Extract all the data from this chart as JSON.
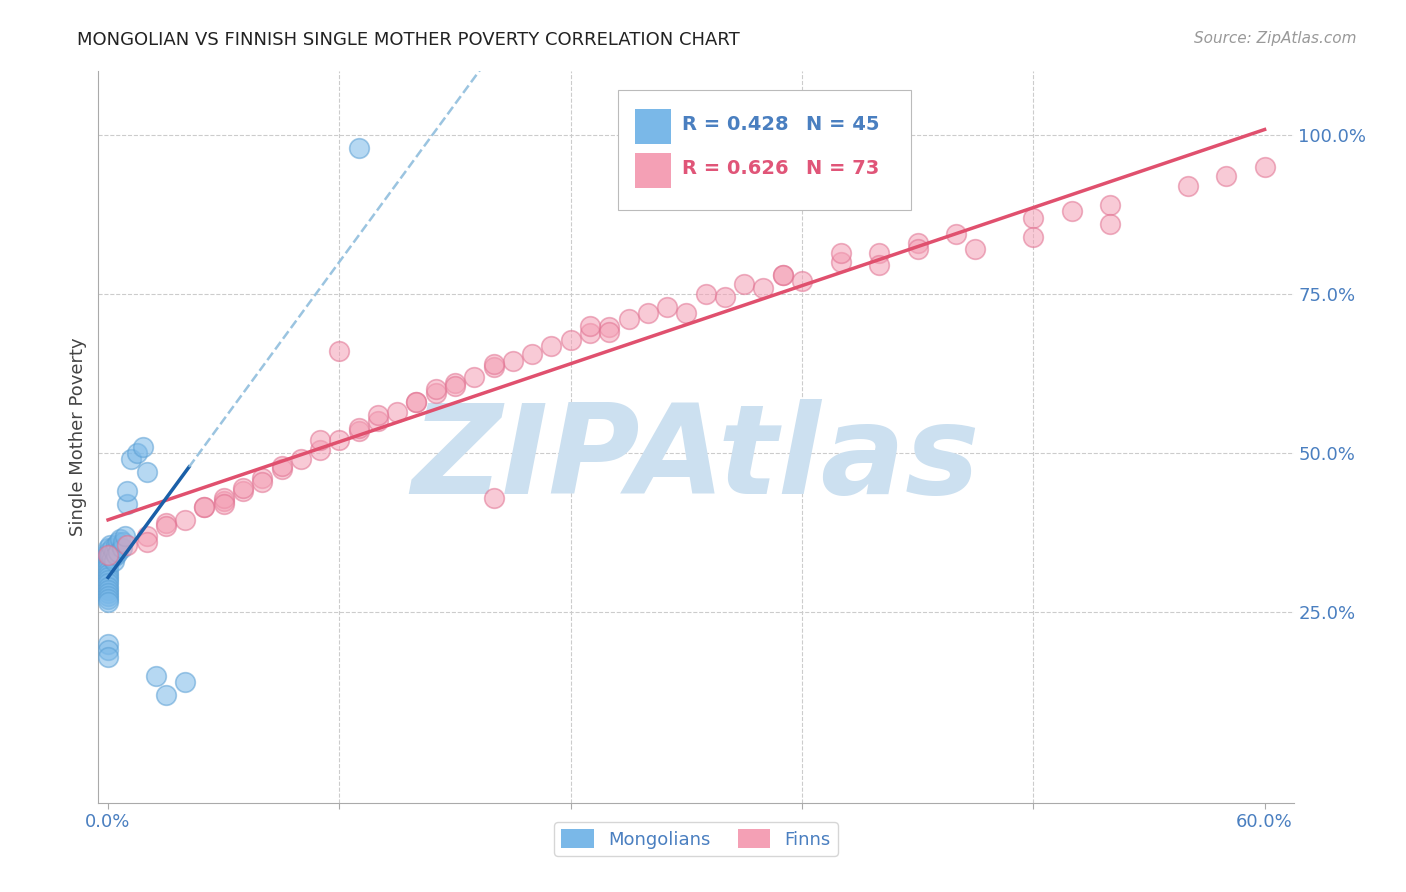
{
  "title": "MONGOLIAN VS FINNISH SINGLE MOTHER POVERTY CORRELATION CHART",
  "source": "Source: ZipAtlas.com",
  "ylabel": "Single Mother Poverty",
  "xlabel_mongolians": "Mongolians",
  "xlabel_finns": "Finns",
  "xlim": [
    -0.005,
    0.615
  ],
  "ylim": [
    -0.05,
    1.1
  ],
  "blue_color": "#7ab8e8",
  "blue_edge_color": "#5a9fd4",
  "pink_color": "#f4a0b5",
  "pink_edge_color": "#e07090",
  "blue_line_color": "#1a5fa8",
  "pink_line_color": "#e0506e",
  "blue_dash_color": "#90bedd",
  "watermark": "ZIPAtlas",
  "watermark_color": "#cce0f0",
  "background_color": "#ffffff",
  "legend_blue": "#4a7fc0",
  "legend_pink": "#e05578",
  "mon_x": [
    0.0,
    0.0,
    0.0,
    0.0,
    0.0,
    0.0,
    0.0,
    0.0,
    0.0,
    0.0,
    0.0,
    0.0,
    0.0,
    0.0,
    0.0,
    0.0,
    0.0,
    0.0,
    0.0,
    0.0,
    0.0,
    0.001,
    0.001,
    0.002,
    0.002,
    0.003,
    0.003,
    0.004,
    0.004,
    0.005,
    0.005,
    0.006,
    0.007,
    0.008,
    0.009,
    0.01,
    0.01,
    0.012,
    0.015,
    0.018,
    0.02,
    0.025,
    0.03,
    0.04,
    0.13
  ],
  "mon_y": [
    0.35,
    0.345,
    0.34,
    0.335,
    0.33,
    0.325,
    0.32,
    0.315,
    0.31,
    0.305,
    0.3,
    0.295,
    0.29,
    0.285,
    0.28,
    0.275,
    0.27,
    0.265,
    0.2,
    0.19,
    0.18,
    0.355,
    0.34,
    0.35,
    0.335,
    0.345,
    0.33,
    0.355,
    0.34,
    0.36,
    0.345,
    0.365,
    0.35,
    0.36,
    0.37,
    0.42,
    0.44,
    0.49,
    0.5,
    0.51,
    0.47,
    0.15,
    0.12,
    0.14,
    0.98
  ],
  "finn_x": [
    0.0,
    0.01,
    0.02,
    0.03,
    0.04,
    0.05,
    0.06,
    0.07,
    0.08,
    0.09,
    0.1,
    0.11,
    0.12,
    0.13,
    0.14,
    0.15,
    0.16,
    0.17,
    0.18,
    0.19,
    0.2,
    0.21,
    0.22,
    0.23,
    0.24,
    0.25,
    0.26,
    0.27,
    0.29,
    0.31,
    0.33,
    0.35,
    0.38,
    0.4,
    0.42,
    0.44,
    0.48,
    0.5,
    0.52,
    0.56,
    0.58,
    0.6,
    0.38,
    0.12,
    0.25,
    0.3,
    0.35,
    0.08,
    0.16,
    0.2,
    0.06,
    0.09,
    0.13,
    0.17,
    0.14,
    0.11,
    0.07,
    0.05,
    0.03,
    0.02,
    0.28,
    0.32,
    0.36,
    0.4,
    0.45,
    0.48,
    0.52,
    0.18,
    0.26,
    0.34,
    0.42,
    0.06,
    0.2
  ],
  "finn_y": [
    0.34,
    0.355,
    0.37,
    0.39,
    0.395,
    0.415,
    0.425,
    0.44,
    0.46,
    0.475,
    0.49,
    0.505,
    0.52,
    0.535,
    0.55,
    0.565,
    0.58,
    0.595,
    0.61,
    0.62,
    0.635,
    0.645,
    0.655,
    0.668,
    0.678,
    0.688,
    0.698,
    0.71,
    0.73,
    0.75,
    0.765,
    0.78,
    0.8,
    0.815,
    0.83,
    0.845,
    0.87,
    0.88,
    0.89,
    0.92,
    0.935,
    0.95,
    0.815,
    0.66,
    0.7,
    0.72,
    0.78,
    0.455,
    0.58,
    0.64,
    0.43,
    0.48,
    0.54,
    0.6,
    0.56,
    0.52,
    0.445,
    0.415,
    0.385,
    0.36,
    0.72,
    0.745,
    0.77,
    0.795,
    0.82,
    0.84,
    0.86,
    0.605,
    0.69,
    0.76,
    0.82,
    0.42,
    0.43
  ],
  "ytick_positions": [
    0.0,
    0.25,
    0.5,
    0.75,
    1.0
  ],
  "ytick_labels": [
    "",
    "25.0%",
    "50.0%",
    "75.0%",
    "100.0%"
  ],
  "xtick_positions": [
    0.0,
    0.12,
    0.24,
    0.36,
    0.48,
    0.6
  ],
  "xtick_labels": [
    "0.0%",
    "",
    "",
    "",
    "",
    "60.0%"
  ]
}
